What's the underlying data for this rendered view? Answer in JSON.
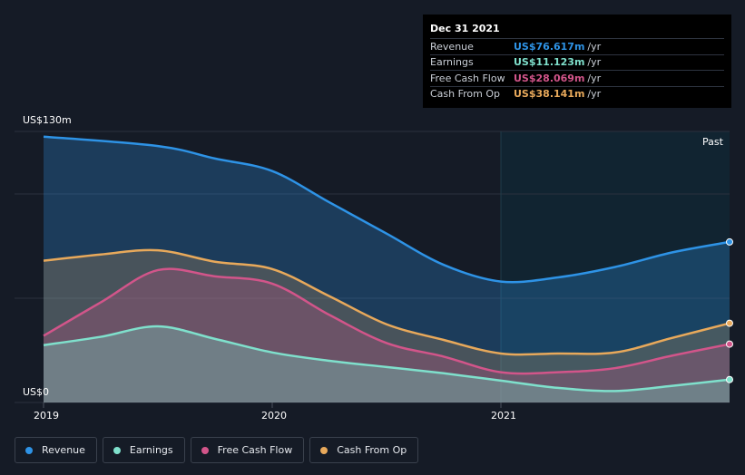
{
  "chart_data": {
    "type": "area",
    "x_labels": [
      "2019",
      "2020",
      "2021"
    ],
    "y_top_label": "US$130m",
    "y_bottom_label": "US$0",
    "ylim": [
      0,
      130
    ],
    "past_label": "Past",
    "series": [
      {
        "name": "Revenue",
        "color": "#2e93e6",
        "points": [
          [
            2019.0,
            127.5
          ],
          [
            2019.5,
            123
          ],
          [
            2019.75,
            117
          ],
          [
            2020.0,
            111
          ],
          [
            2020.25,
            96
          ],
          [
            2020.5,
            81
          ],
          [
            2020.75,
            66
          ],
          [
            2021.0,
            58
          ],
          [
            2021.25,
            60
          ],
          [
            2021.5,
            65
          ],
          [
            2021.75,
            72
          ],
          [
            2022.0,
            77
          ]
        ]
      },
      {
        "name": "Cash From Op",
        "color": "#e8a95b",
        "points": [
          [
            2019.0,
            68
          ],
          [
            2019.25,
            71
          ],
          [
            2019.5,
            73
          ],
          [
            2019.75,
            67.5
          ],
          [
            2020.0,
            64
          ],
          [
            2020.25,
            51
          ],
          [
            2020.5,
            37.5
          ],
          [
            2020.75,
            30
          ],
          [
            2021.0,
            23.5
          ],
          [
            2021.25,
            23.5
          ],
          [
            2021.5,
            24
          ],
          [
            2021.75,
            31
          ],
          [
            2022.0,
            38
          ]
        ]
      },
      {
        "name": "Free Cash Flow",
        "color": "#d2558a",
        "points": [
          [
            2019.0,
            32
          ],
          [
            2019.25,
            48
          ],
          [
            2019.5,
            63.5
          ],
          [
            2019.75,
            60.5
          ],
          [
            2020.0,
            57
          ],
          [
            2020.25,
            42
          ],
          [
            2020.5,
            28.5
          ],
          [
            2020.75,
            22
          ],
          [
            2021.0,
            14.5
          ],
          [
            2021.25,
            14.5
          ],
          [
            2021.5,
            16.5
          ],
          [
            2021.75,
            22.5
          ],
          [
            2022.0,
            28
          ]
        ]
      },
      {
        "name": "Earnings",
        "color": "#7fe0cc",
        "points": [
          [
            2019.0,
            27.5
          ],
          [
            2019.25,
            31.5
          ],
          [
            2019.5,
            36.5
          ],
          [
            2019.75,
            30.5
          ],
          [
            2020.0,
            24
          ],
          [
            2020.25,
            20
          ],
          [
            2020.5,
            17
          ],
          [
            2020.75,
            14
          ],
          [
            2021.0,
            10.5
          ],
          [
            2021.25,
            7
          ],
          [
            2021.5,
            5.5
          ],
          [
            2021.75,
            8
          ],
          [
            2022.0,
            11
          ]
        ]
      }
    ]
  },
  "tooltip": {
    "date": "Dec 31 2021",
    "unit": "/yr",
    "rows": [
      {
        "label": "Revenue",
        "value": "US$76.617m",
        "color": "#2e93e6"
      },
      {
        "label": "Earnings",
        "value": "US$11.123m",
        "color": "#7fe0cc"
      },
      {
        "label": "Free Cash Flow",
        "value": "US$28.069m",
        "color": "#d2558a"
      },
      {
        "label": "Cash From Op",
        "value": "US$38.141m",
        "color": "#e8a95b"
      }
    ]
  },
  "legend": [
    {
      "label": "Revenue",
      "color": "#2e93e6"
    },
    {
      "label": "Earnings",
      "color": "#7fe0cc"
    },
    {
      "label": "Free Cash Flow",
      "color": "#d2558a"
    },
    {
      "label": "Cash From Op",
      "color": "#e8a95b"
    }
  ]
}
